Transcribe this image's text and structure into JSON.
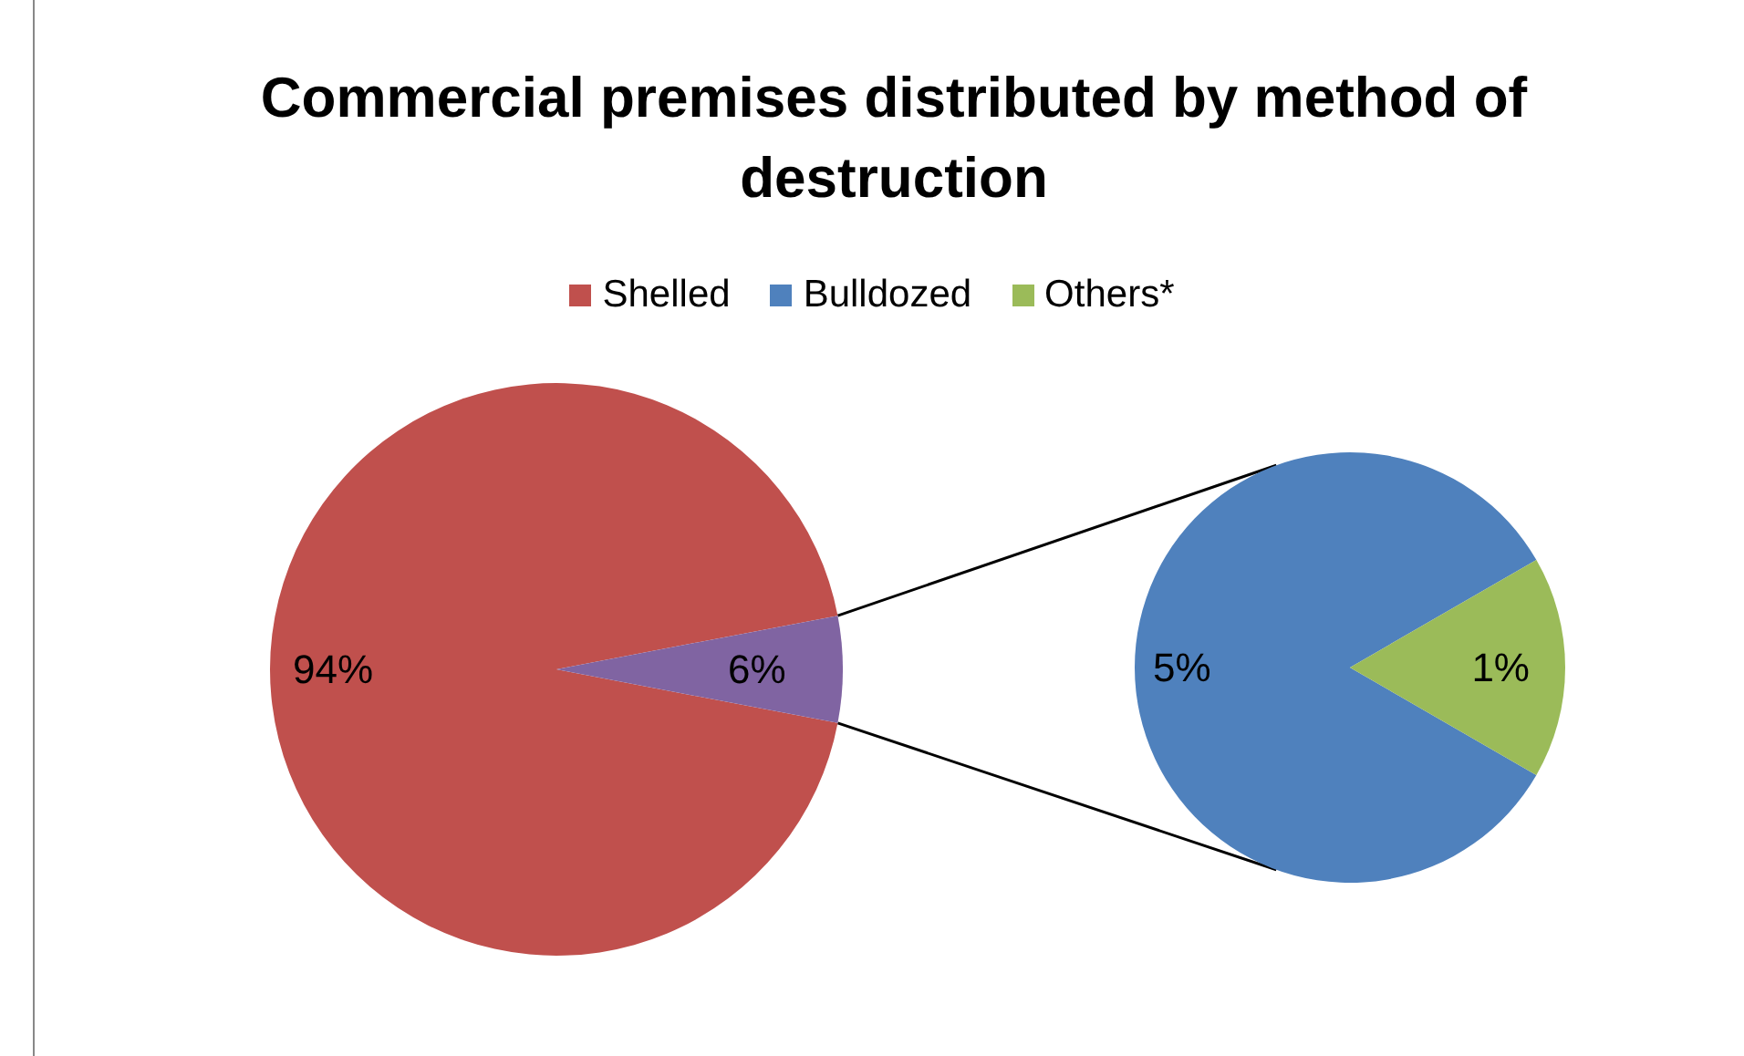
{
  "chart_data": [
    {
      "type": "pie",
      "title": "Commercial premises distributed by method of destruction",
      "legend": "top",
      "categories": [
        "Shelled",
        null
      ],
      "values": [
        94,
        6
      ],
      "colors": [
        "#c0504d",
        "#8064a2"
      ],
      "value_labels": [
        "94%",
        "6%"
      ]
    },
    {
      "type": "pie",
      "legend": "top",
      "categories": [
        "Bulldozed",
        "Others*"
      ],
      "values": [
        5,
        1
      ],
      "colors": [
        "#4f81bd",
        "#9bbb59"
      ],
      "value_labels": [
        "5%",
        "1%"
      ]
    }
  ]
}
